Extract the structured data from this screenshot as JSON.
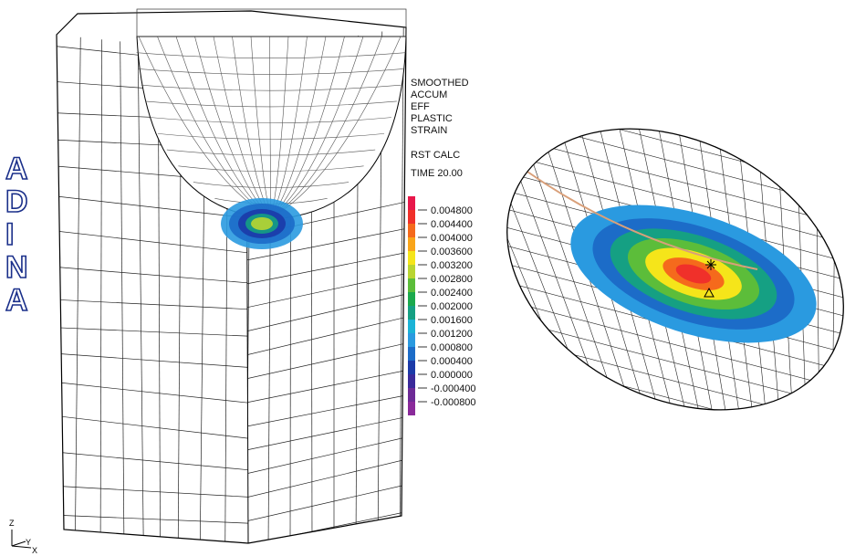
{
  "logo": [
    "A",
    "D",
    "I",
    "N",
    "A"
  ],
  "legend": {
    "title_lines": [
      "SMOOTHED",
      "ACCUM",
      "EFF",
      "PLASTIC",
      "STRAIN"
    ],
    "calc": "RST CALC",
    "time": "TIME 20.00",
    "labels": [
      "0.004800",
      "0.004400",
      "0.004000",
      "0.003600",
      "0.003200",
      "0.002800",
      "0.002400",
      "0.002000",
      "0.001600",
      "0.001200",
      "0.000800",
      "0.000400",
      "0.000000",
      "-0.000400",
      "-0.000800"
    ],
    "colors": [
      "#e8174a",
      "#f0302a",
      "#f56a1c",
      "#f9a51a",
      "#f5e51a",
      "#b9d531",
      "#5cbd3a",
      "#1ba94d",
      "#15a083",
      "#1bb3d6",
      "#2a9ae0",
      "#1c6cc8",
      "#1b3aa8",
      "#3a2a9a",
      "#6d2a96",
      "#8a2a9a"
    ]
  },
  "triad": {
    "z": "Z",
    "y": "Y",
    "x": "X"
  }
}
